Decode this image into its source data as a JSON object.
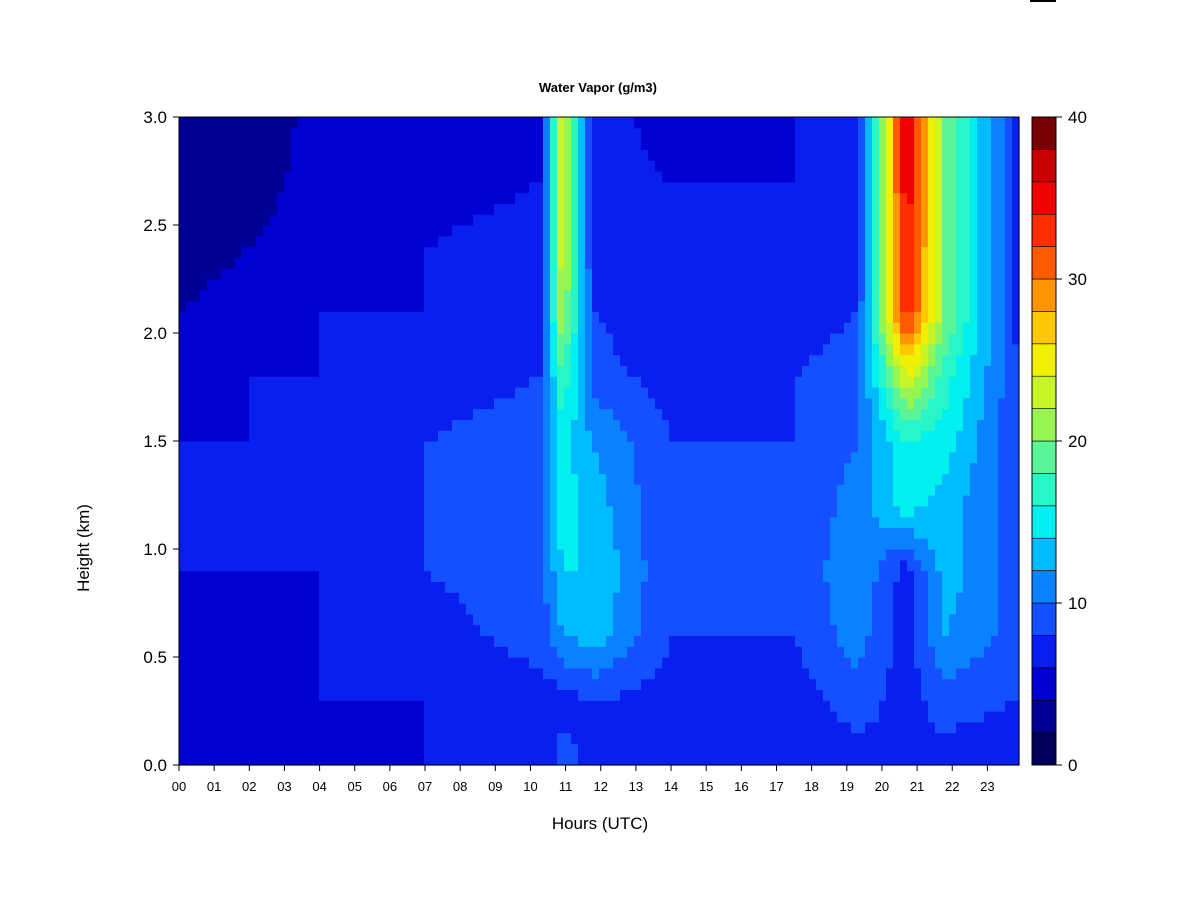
{
  "chart_data": {
    "type": "heatmap",
    "title": "Water Vapor (g/m3)",
    "xlabel": "Hours (UTC)",
    "ylabel": "Height (km)",
    "x_ticks": [
      "00",
      "01",
      "02",
      "03",
      "04",
      "05",
      "06",
      "07",
      "08",
      "09",
      "10",
      "11",
      "12",
      "13",
      "14",
      "15",
      "16",
      "17",
      "18",
      "19",
      "20",
      "21",
      "22",
      "23"
    ],
    "y_ticks": [
      "0.0",
      "0.5",
      "1.0",
      "1.5",
      "2.0",
      "2.5",
      "3.0"
    ],
    "xlim": [
      0,
      23.9
    ],
    "ylim": [
      0,
      3.0
    ],
    "colorbar": {
      "min": 0,
      "max": 40,
      "tick_labels": [
        "0",
        "10",
        "20",
        "30",
        "40"
      ],
      "colors": [
        "#00005A",
        "#000096",
        "#0000D2",
        "#0A1EF0",
        "#1450FF",
        "#0A82FF",
        "#00BCFF",
        "#00F0F0",
        "#28F5C8",
        "#5AF596",
        "#96F550",
        "#C8F528",
        "#F0F000",
        "#FFC800",
        "#FF9600",
        "#FF5A00",
        "#FF2D00",
        "#F00000",
        "#C80000",
        "#780000"
      ]
    },
    "field_profiles": [
      {
        "hour": 0.0,
        "heights": [
          0.0,
          0.3,
          0.6,
          0.9,
          1.2,
          1.5,
          1.8,
          2.1,
          2.4,
          2.7,
          3.0
        ],
        "values": [
          4,
          4,
          5,
          6,
          6,
          6,
          5,
          4,
          3,
          2,
          2
        ]
      },
      {
        "hour": 2.0,
        "heights": [
          0.0,
          0.3,
          0.6,
          0.9,
          1.2,
          1.5,
          1.8,
          2.1,
          2.4,
          2.7,
          3.0
        ],
        "values": [
          5,
          5,
          5,
          6,
          6,
          6,
          6,
          5,
          4,
          3,
          2
        ]
      },
      {
        "hour": 4.0,
        "heights": [
          0.0,
          0.3,
          0.6,
          0.9,
          1.2,
          1.5,
          1.8,
          2.1,
          2.4,
          2.7,
          3.0
        ],
        "values": [
          5,
          6,
          6,
          6,
          6,
          6,
          6,
          6,
          5,
          5,
          5
        ]
      },
      {
        "hour": 7.0,
        "heights": [
          0.0,
          0.3,
          0.6,
          0.9,
          1.2,
          1.5,
          1.8,
          2.1,
          2.4,
          2.7,
          3.0
        ],
        "values": [
          6,
          6,
          7,
          8,
          8,
          8,
          7,
          6,
          6,
          5,
          5
        ]
      },
      {
        "hour": 10.3,
        "heights": [
          0.0,
          0.3,
          0.6,
          0.9,
          1.2,
          1.5,
          1.8,
          2.1,
          2.4,
          2.7,
          3.0
        ],
        "values": [
          6,
          7,
          9,
          9,
          10,
          9,
          8,
          8,
          7,
          6,
          6
        ]
      },
      {
        "hour": 10.9,
        "heights": [
          0.0,
          0.3,
          0.6,
          0.9,
          1.2,
          1.5,
          1.8,
          2.1,
          2.4,
          2.7,
          3.0
        ],
        "values": [
          9,
          7,
          12,
          14,
          15,
          15,
          18,
          22,
          24,
          24,
          24
        ]
      },
      {
        "hour": 11.8,
        "heights": [
          0.0,
          0.3,
          0.6,
          0.9,
          1.2,
          1.5,
          1.8,
          2.1,
          2.4,
          2.7,
          3.0
        ],
        "values": [
          7,
          8,
          13,
          14,
          13,
          12,
          9,
          8,
          7,
          7,
          7
        ]
      },
      {
        "hour": 14.0,
        "heights": [
          0.0,
          0.3,
          0.6,
          0.9,
          1.2,
          1.5,
          1.8,
          2.1,
          2.4,
          2.7,
          3.0
        ],
        "values": [
          6,
          7,
          8,
          8,
          8,
          8,
          7,
          6,
          6,
          6,
          5
        ]
      },
      {
        "hour": 17.5,
        "heights": [
          0.0,
          0.3,
          0.6,
          0.9,
          1.2,
          1.5,
          1.8,
          2.1,
          2.4,
          2.7,
          3.0
        ],
        "values": [
          6,
          7,
          8,
          8,
          8,
          8,
          8,
          7,
          6,
          6,
          6
        ]
      },
      {
        "hour": 19.3,
        "heights": [
          0.0,
          0.3,
          0.6,
          0.9,
          1.2,
          1.5,
          1.8,
          2.1,
          2.4,
          2.7,
          3.0
        ],
        "values": [
          7,
          9,
          11,
          12,
          11,
          10,
          9,
          8,
          7,
          7,
          7
        ]
      },
      {
        "hour": 20.7,
        "heights": [
          0.0,
          0.3,
          0.6,
          0.9,
          1.2,
          1.5,
          1.8,
          2.1,
          2.4,
          2.7,
          3.0
        ],
        "values": [
          8,
          7,
          7,
          7,
          15,
          16,
          24,
          34,
          35,
          36,
          36
        ]
      },
      {
        "hour": 21.8,
        "heights": [
          0.0,
          0.3,
          0.6,
          0.9,
          1.2,
          1.5,
          1.8,
          2.1,
          2.4,
          2.7,
          3.0
        ],
        "values": [
          7,
          9,
          12,
          13,
          13,
          15,
          17,
          20,
          20,
          20,
          20
        ]
      },
      {
        "hour": 23.9,
        "heights": [
          0.0,
          0.3,
          0.6,
          0.9,
          1.2,
          1.5,
          1.8,
          2.1,
          2.4,
          2.7,
          3.0
        ],
        "values": [
          6,
          8,
          9,
          9,
          9,
          8,
          8,
          7,
          7,
          7,
          7
        ]
      }
    ]
  }
}
